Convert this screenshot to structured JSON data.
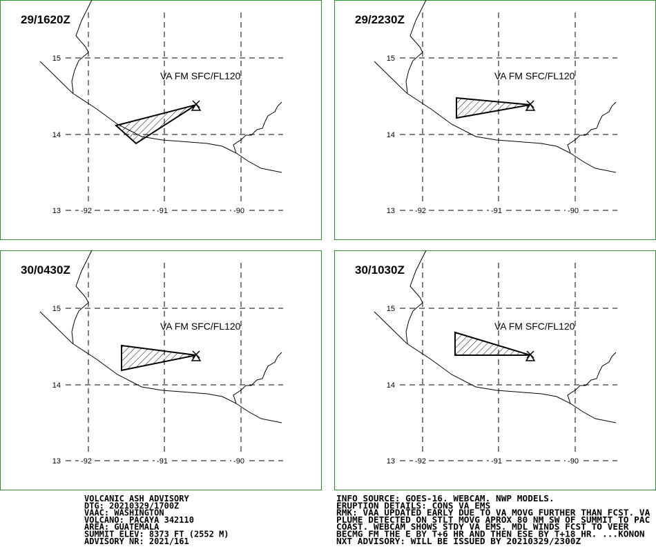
{
  "panels": [
    {
      "time": "29/1620Z",
      "label": "VA FM SFC/FL120"
    },
    {
      "time": "29/2230Z",
      "label": "VA FM SFC/FL120"
    },
    {
      "time": "30/0430Z",
      "label": "VA FM SFC/FL120"
    },
    {
      "time": "30/1030Z",
      "label": "VA FM SFC/FL120"
    }
  ],
  "grid": {
    "lat_labels": [
      "15",
      "14",
      "13"
    ],
    "lon_labels": [
      "-92",
      "-91",
      "-90"
    ]
  },
  "advisory": {
    "left": [
      "VOLCANIC ASH ADVISORY",
      "DTG: 20210329/1700Z",
      "VAAC: WASHINGTON",
      "VOLCANO: PACAYA 342110",
      "AREA: GUATEMALA",
      "SUMMIT ELEV: 8373 FT (2552 M)",
      "ADVISORY NR: 2021/161"
    ],
    "right": [
      "INFO SOURCE: GOES-16. WEBCAM. NWP MODELS.",
      "ERUPTION DETAILS: CONS VA EMS",
      "RMK: VAA UPDATED EARLY DUE TO VA MOVG FURTHER THAN FCST. VA",
      "PLUME DETECTED ON STLT MOVG APROX 80 NM SW OF SUMMIT TO PAC",
      "COAST. WEBCAM SHOWS STDY VA EMS. MDL WINDS FCST TO VEER",
      "BECMG FM THE E BY T+6 HR AND THEN ESE BY T+18 HR. ...KONON",
      "NXT ADVISORY: WILL BE ISSUED BY 20210329/2300Z"
    ]
  }
}
